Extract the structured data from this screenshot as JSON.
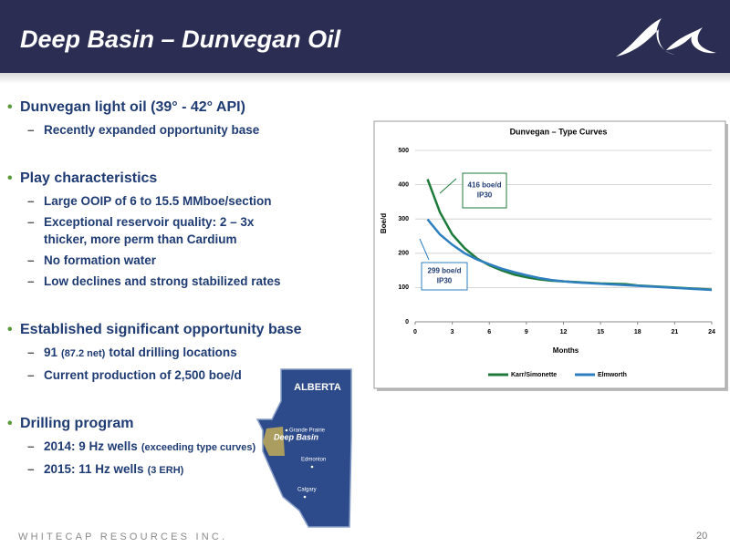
{
  "header": {
    "title": "Deep Basin – Dunvegan Oil"
  },
  "bullets": [
    {
      "text": "Dunvegan light oil (39° - 42° API)",
      "sub": [
        "Recently expanded opportunity base"
      ]
    },
    {
      "text": "Play characteristics",
      "sub": [
        "Large OOIP of 6 to 15.5 MMboe/section",
        "Exceptional reservoir quality:  2 – 3x thicker, more perm than Cardium",
        "No formation water",
        "Low declines and strong stabilized rates"
      ]
    },
    {
      "text": "Established significant opportunity base",
      "sub": [
        [
          "91",
          "(87.2 net)",
          "total drilling locations"
        ],
        "Current production of 2,500 boe/d"
      ]
    },
    {
      "text": "Drilling program",
      "sub": [
        [
          "2014:  9 Hz wells",
          "(exceeding type curves)"
        ],
        [
          "2015:  11 Hz wells",
          "(3 ERH)"
        ]
      ]
    }
  ],
  "map": {
    "title": "ALBERTA",
    "region": "Deep Basin",
    "cities": [
      "Grande Prairie",
      "Edmonton",
      "Calgary"
    ]
  },
  "footer": {
    "company": "WHITECAP RESOURCES INC.",
    "page": "20"
  },
  "chart_data": {
    "type": "line",
    "title": "Dunvegan – Type Curves",
    "x_label": "Months",
    "y_label": "Boe/d",
    "x": [
      1,
      2,
      3,
      4,
      5,
      6,
      7,
      8,
      9,
      10,
      11,
      12,
      13,
      14,
      15,
      16,
      17,
      18,
      19,
      20,
      21,
      22,
      23,
      24
    ],
    "xlim": [
      0,
      24
    ],
    "xticks": [
      0,
      3,
      6,
      9,
      12,
      15,
      18,
      21,
      24
    ],
    "ylim": [
      0,
      500
    ],
    "yticks": [
      0,
      100,
      200,
      300,
      400,
      500
    ],
    "grid": true,
    "series": [
      {
        "name": "Karr/Simonette",
        "color": "#1e7a3a",
        "values": [
          416,
          320,
          255,
          215,
          185,
          165,
          150,
          138,
          130,
          124,
          120,
          118,
          116,
          114,
          112,
          111,
          110,
          106,
          104,
          102,
          100,
          98,
          96,
          94
        ]
      },
      {
        "name": "Elmworth",
        "color": "#2e7fc0",
        "values": [
          299,
          255,
          225,
          200,
          182,
          168,
          155,
          145,
          136,
          128,
          122,
          118,
          115,
          113,
          111,
          109,
          107,
          105,
          103,
          101,
          99,
          97,
          95,
          93
        ]
      }
    ],
    "annotations": [
      [
        "416 boe/d",
        "IP30"
      ],
      [
        "299 boe/d",
        "IP30"
      ]
    ]
  }
}
